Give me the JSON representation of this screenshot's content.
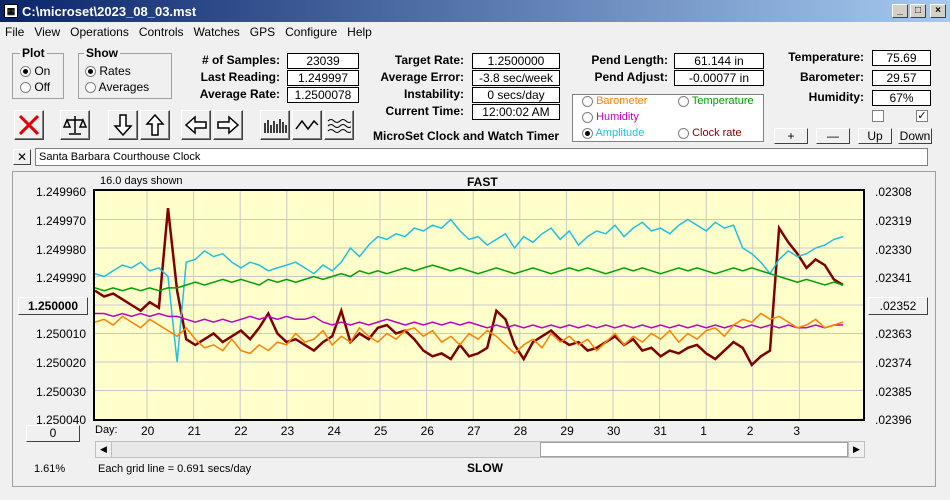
{
  "window": {
    "title": "C:\\microset\\2023_08_03.mst"
  },
  "menu": [
    "File",
    "View",
    "Operations",
    "Controls",
    "Watches",
    "GPS",
    "Configure",
    "Help"
  ],
  "plot_group": {
    "label": "Plot",
    "options": [
      "On",
      "Off"
    ],
    "selected": "On"
  },
  "show_group": {
    "label": "Show",
    "options": [
      "Rates",
      "Averages"
    ],
    "selected": "Rates"
  },
  "stats": {
    "samples_label": "# of Samples:",
    "samples": "23039",
    "last_reading_label": "Last Reading:",
    "last_reading": "1.249997",
    "average_rate_label": "Average Rate:",
    "average_rate": "1.2500078",
    "target_rate_label": "Target Rate:",
    "target_rate": "1.2500000",
    "average_error_label": "Average Error:",
    "average_error": "-3.8 sec/week",
    "instability_label": "Instability:",
    "instability": "0 secs/day",
    "current_time_label": "Current Time:",
    "current_time": "12:00:02 AM",
    "pend_length_label": "Pend Length:",
    "pend_length": "61.144 in",
    "pend_adjust_label": "Pend Adjust:",
    "pend_adjust": "-0.00077 in",
    "temperature_label": "Temperature:",
    "temperature": "75.69",
    "barometer_label": "Barometer:",
    "barometer": "29.57",
    "humidity_label": "Humidity:",
    "humidity": "67%"
  },
  "app_caption": "MicroSet Clock and Watch Timer",
  "series_options": [
    {
      "label": "Barometer",
      "color": "#ff8000",
      "selected": false
    },
    {
      "label": "Temperature",
      "color": "#00a000",
      "selected": false
    },
    {
      "label": "Humidity",
      "color": "#c000c0",
      "selected": false
    },
    {
      "label": "Amplitude",
      "color": "#20c0e0",
      "selected": true
    },
    {
      "label": "Clock rate",
      "color": "#800000",
      "selected": false
    }
  ],
  "scale_buttons": [
    "+",
    "—",
    "Up",
    "Down"
  ],
  "clock_name": "Santa Barbara Courthouse Clock",
  "close_x": "✕",
  "graph": {
    "days_shown": "16.0 days shown",
    "top_label": "FAST",
    "bottom_label": "SLOW",
    "left_ticks": [
      "1.249960",
      "1.249970",
      "1.249980",
      "1.249990",
      "1.250000",
      "1.250010",
      "1.250020",
      "1.250030",
      "1.250040"
    ],
    "right_ticks": [
      ".02308",
      ".02319",
      ".02330",
      ".02341",
      ".02352",
      ".02363",
      ".02374",
      ".02385",
      ".02396"
    ],
    "left_button": "0",
    "day_label": "Day:",
    "days": [
      "20",
      "21",
      "22",
      "23",
      "24",
      "25",
      "26",
      "27",
      "28",
      "29",
      "30",
      "31",
      "1",
      "2",
      "3"
    ],
    "percent": "1.61%",
    "grid_note": "Each grid line = 0.691 secs/day"
  },
  "chart_data": {
    "type": "line",
    "ylim": [
      1.24996,
      1.25004
    ],
    "x_unit": "days",
    "series": [
      {
        "name": "Clock rate",
        "color": "#800000",
        "values": [
          1.249995,
          1.249997,
          1.249996,
          1.249998,
          1.25,
          1.250002,
          1.249999,
          1.250001,
          1.249966,
          1.249995,
          1.250012,
          1.250014,
          1.250012,
          1.25001,
          1.250013,
          1.250011,
          1.250009,
          1.250012,
          1.250008,
          1.250003,
          1.25001,
          1.250013,
          1.250012,
          1.250014,
          1.250016,
          1.250013,
          1.250011,
          1.250002,
          1.250013,
          1.25001,
          1.250012,
          1.250008,
          1.250007,
          1.25001,
          1.250009,
          1.250012,
          1.250016,
          1.250018,
          1.250017,
          1.250019,
          1.250014,
          1.250018,
          1.250017,
          1.250015,
          1.250002,
          1.250005,
          1.250014,
          1.250019,
          1.250013,
          1.250011,
          1.250009,
          1.250012,
          1.250014,
          1.250013,
          1.250016,
          1.250015,
          1.250013,
          1.250011,
          1.250014,
          1.250012,
          1.250016,
          1.250015,
          1.250018,
          1.250016,
          1.250017,
          1.250015,
          1.250014,
          1.250017,
          1.250019,
          1.250016,
          1.250013,
          1.250015,
          1.250021,
          1.250018,
          1.250016,
          1.249973,
          1.249978,
          1.249982,
          1.249987,
          1.249984,
          1.249986,
          1.249991,
          1.249993
        ]
      },
      {
        "name": "Amplitude",
        "color": "#20c0e0",
        "values": [
          1.249989,
          1.24999,
          1.249988,
          1.249986,
          1.249987,
          1.249985,
          1.249988,
          1.249987,
          1.24999,
          1.25002,
          1.249985,
          1.249984,
          1.249981,
          1.249983,
          1.249982,
          1.249985,
          1.249987,
          1.249985,
          1.249986,
          1.249988,
          1.249987,
          1.249986,
          1.249985,
          1.249987,
          1.249989,
          1.249986,
          1.249988,
          1.249985,
          1.24998,
          1.249983,
          1.249979,
          1.249976,
          1.249977,
          1.249975,
          1.249976,
          1.249973,
          1.249974,
          1.249972,
          1.249973,
          1.24997,
          1.249974,
          1.249977,
          1.249976,
          1.249979,
          1.249977,
          1.249975,
          1.24998,
          1.249976,
          1.249978,
          1.249975,
          1.249973,
          1.249977,
          1.249974,
          1.249979,
          1.249976,
          1.249974,
          1.249975,
          1.249972,
          1.249976,
          1.249973,
          1.249971,
          1.249974,
          1.249973,
          1.249975,
          1.249972,
          1.24997,
          1.249972,
          1.249974,
          1.249971,
          1.249973,
          1.249972,
          1.24998,
          1.249982,
          1.249985,
          1.249989,
          1.249984,
          1.249981,
          1.249983,
          1.249982,
          1.24998,
          1.249979,
          1.249977,
          1.249976
        ]
      },
      {
        "name": "Temperature",
        "color": "#00a000",
        "values": [
          1.249994,
          1.249995,
          1.249994,
          1.249995,
          1.249994,
          1.249995,
          1.249994,
          1.249995,
          1.249994,
          1.249994,
          1.249993,
          1.249992,
          1.249993,
          1.249992,
          1.249991,
          1.249992,
          1.249991,
          1.249992,
          1.249993,
          1.249991,
          1.249992,
          1.249991,
          1.249992,
          1.249991,
          1.24999,
          1.249991,
          1.24999,
          1.249989,
          1.24999,
          1.249988,
          1.249989,
          1.249988,
          1.249989,
          1.249988,
          1.249987,
          1.249988,
          1.249987,
          1.249986,
          1.249987,
          1.249988,
          1.249987,
          1.249988,
          1.249989,
          1.249988,
          1.249987,
          1.249988,
          1.249989,
          1.249988,
          1.249987,
          1.249988,
          1.249989,
          1.249988,
          1.249987,
          1.249988,
          1.249987,
          1.249988,
          1.249989,
          1.249988,
          1.249987,
          1.249988,
          1.249987,
          1.249988,
          1.249989,
          1.249988,
          1.249987,
          1.249988,
          1.249987,
          1.249988,
          1.249989,
          1.249988,
          1.249987,
          1.249988,
          1.249987,
          1.249988,
          1.249989,
          1.24999,
          1.249991,
          1.249992,
          1.249991,
          1.249992,
          1.249993,
          1.249992,
          1.249993
        ]
      },
      {
        "name": "Humidity",
        "color": "#c000c0",
        "values": [
          1.250003,
          1.250003,
          1.250004,
          1.250003,
          1.250004,
          1.250003,
          1.250004,
          1.250003,
          1.250004,
          1.250004,
          1.250005,
          1.250006,
          1.250005,
          1.250006,
          1.250005,
          1.250006,
          1.250005,
          1.250004,
          1.250005,
          1.250004,
          1.250005,
          1.250004,
          1.250005,
          1.250005,
          1.250004,
          1.250006,
          1.250007,
          1.250006,
          1.250007,
          1.250006,
          1.250007,
          1.250006,
          1.250005,
          1.250006,
          1.250007,
          1.250006,
          1.250007,
          1.250006,
          1.250007,
          1.250006,
          1.250007,
          1.250006,
          1.250007,
          1.250008,
          1.250007,
          1.250008,
          1.250007,
          1.250008,
          1.250007,
          1.250008,
          1.250007,
          1.250008,
          1.250007,
          1.250008,
          1.250007,
          1.250008,
          1.250007,
          1.250008,
          1.250007,
          1.250008,
          1.250007,
          1.250008,
          1.250007,
          1.250008,
          1.250007,
          1.250008,
          1.250007,
          1.250008,
          1.250007,
          1.250008,
          1.250007,
          1.250008,
          1.250007,
          1.250008,
          1.250007,
          1.250008,
          1.250007,
          1.250008,
          1.250008,
          1.250007,
          1.250008,
          1.250007,
          1.250007
        ]
      },
      {
        "name": "Barometer",
        "color": "#ff8000",
        "values": [
          1.250006,
          1.250005,
          1.250007,
          1.250004,
          1.250006,
          1.250008,
          1.250005,
          1.250007,
          1.250009,
          1.250011,
          1.250008,
          1.250012,
          1.250015,
          1.250014,
          1.250016,
          1.250012,
          1.250016,
          1.250017,
          1.250014,
          1.250016,
          1.250013,
          1.250014,
          1.25001,
          1.250013,
          1.250012,
          1.250009,
          1.250014,
          1.250011,
          1.250013,
          1.250008,
          1.250011,
          1.250013,
          1.25001,
          1.250012,
          1.250009,
          1.250008,
          1.250011,
          1.250009,
          1.250013,
          1.250011,
          1.250014,
          1.25001,
          1.250012,
          1.250009,
          1.250011,
          1.250014,
          1.250017,
          1.250014,
          1.250012,
          1.250015,
          1.25001,
          1.250013,
          1.250011,
          1.250014,
          1.250012,
          1.250016,
          1.250013,
          1.25001,
          1.250014,
          1.250011,
          1.250013,
          1.25001,
          1.250012,
          1.250009,
          1.250013,
          1.25001,
          1.250012,
          1.250009,
          1.250008,
          1.250011,
          1.250007,
          1.250005,
          1.250006,
          1.250003,
          1.250005,
          1.250004,
          1.250006,
          1.250008,
          1.250007,
          1.250005,
          1.250008,
          1.250007,
          1.250006
        ]
      }
    ]
  }
}
